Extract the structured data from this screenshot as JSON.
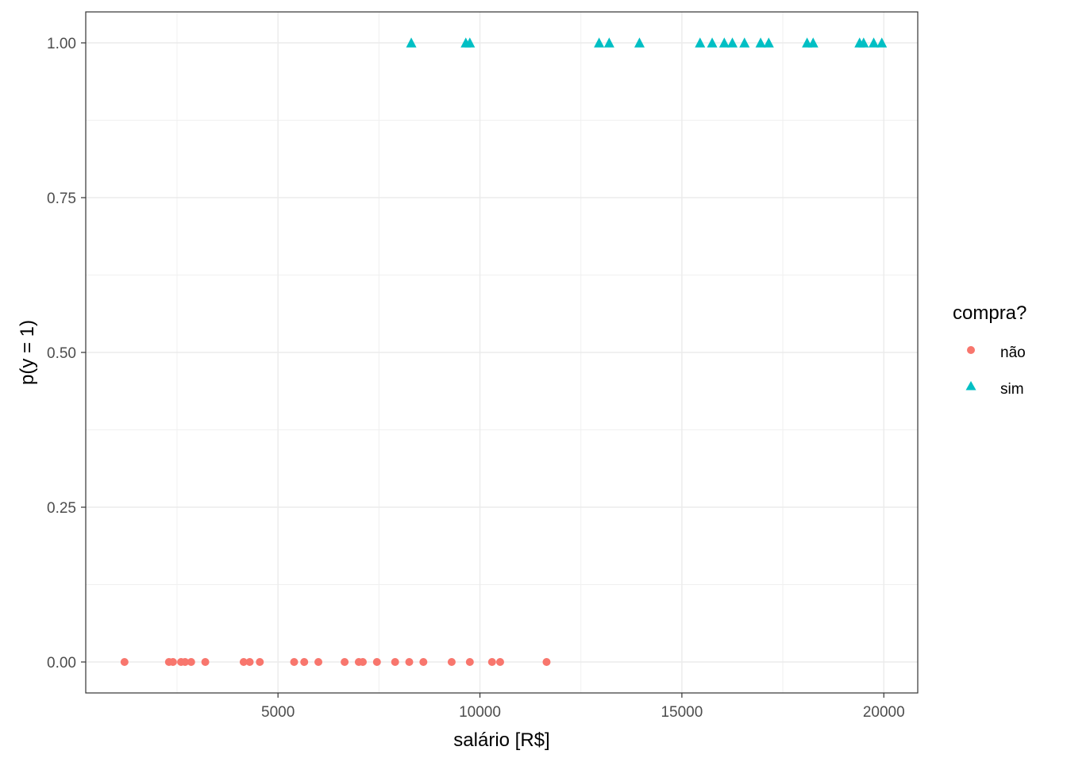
{
  "chart_data": {
    "type": "scatter",
    "title": "",
    "xlabel": "salário [R$]",
    "ylabel": "p(y = 1)",
    "xlim": [
      240,
      20840
    ],
    "ylim": [
      -0.05,
      1.05
    ],
    "x_ticks": [
      5000,
      10000,
      15000,
      20000
    ],
    "x_tick_labels": [
      "5000",
      "10000",
      "15000",
      "20000"
    ],
    "y_ticks": [
      0,
      0.25,
      0.5,
      0.75,
      1
    ],
    "y_tick_labels": [
      "0.00",
      "0.25",
      "0.50",
      "0.75",
      "1.00"
    ],
    "grid": true,
    "legend": {
      "title": "compra?",
      "position": "right",
      "entries": [
        {
          "label": "não",
          "shape": "circle",
          "color": "#F8766D"
        },
        {
          "label": "sim",
          "shape": "triangle",
          "color": "#00BFC4"
        }
      ]
    },
    "series": [
      {
        "name": "não",
        "shape": "circle",
        "color": "#F8766D",
        "x": [
          1200,
          2300,
          2400,
          2600,
          2700,
          2850,
          3200,
          4150,
          4300,
          4550,
          5400,
          5650,
          6000,
          6650,
          7000,
          7100,
          7450,
          7900,
          8250,
          8600,
          9300,
          9750,
          10300,
          10500,
          11650
        ],
        "y": [
          0,
          0,
          0,
          0,
          0,
          0,
          0,
          0,
          0,
          0,
          0,
          0,
          0,
          0,
          0,
          0,
          0,
          0,
          0,
          0,
          0,
          0,
          0,
          0,
          0
        ]
      },
      {
        "name": "sim",
        "shape": "triangle",
        "color": "#00BFC4",
        "x": [
          8300,
          9650,
          9750,
          12950,
          13200,
          13950,
          15450,
          15750,
          16050,
          16250,
          16550,
          16950,
          17150,
          18100,
          18250,
          19400,
          19500,
          19750,
          19950
        ],
        "y": [
          1,
          1,
          1,
          1,
          1,
          1,
          1,
          1,
          1,
          1,
          1,
          1,
          1,
          1,
          1,
          1,
          1,
          1,
          1
        ]
      }
    ]
  }
}
